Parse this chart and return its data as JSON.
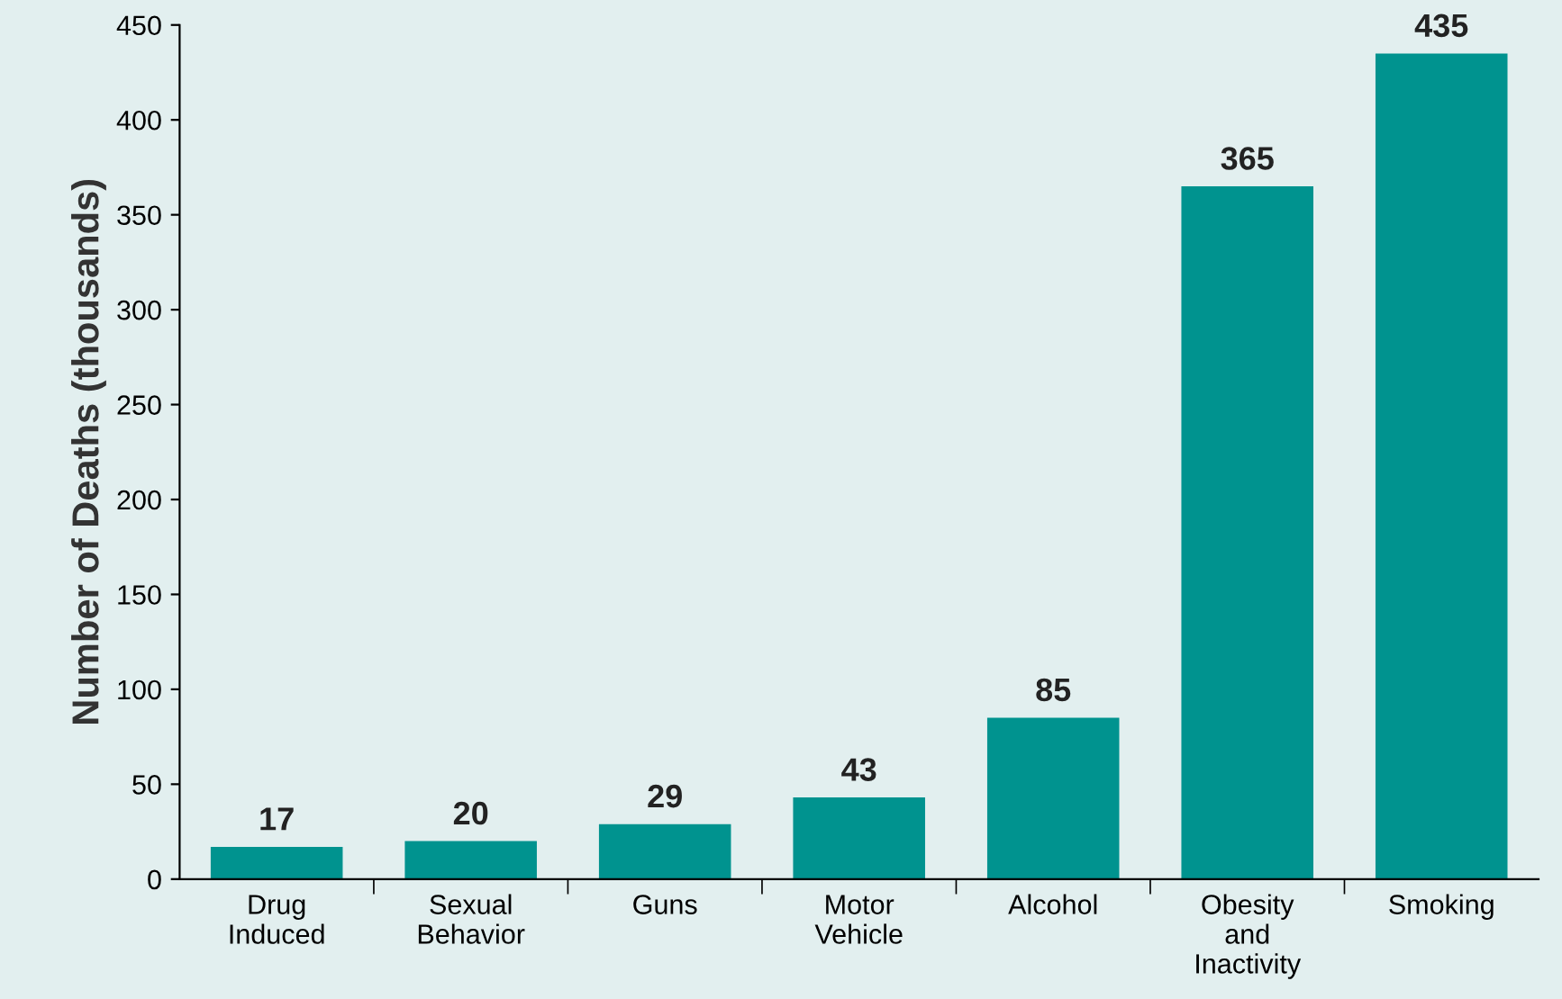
{
  "chart_data": {
    "type": "bar",
    "ylabel": "Number of Deaths (thousands)",
    "categories": [
      "Drug\nInduced",
      "Sexual\nBehavior",
      "Guns",
      "Motor\nVehicle",
      "Alcohol",
      "Obesity\nand\nInactivity",
      "Smoking"
    ],
    "values": [
      17,
      20,
      29,
      43,
      85,
      365,
      435
    ],
    "color": "#00938f",
    "ylim": [
      0,
      450
    ],
    "yticks": [
      0,
      50,
      100,
      150,
      200,
      250,
      300,
      350,
      400,
      450
    ],
    "data_labels": true,
    "grid": false,
    "legend": false
  }
}
